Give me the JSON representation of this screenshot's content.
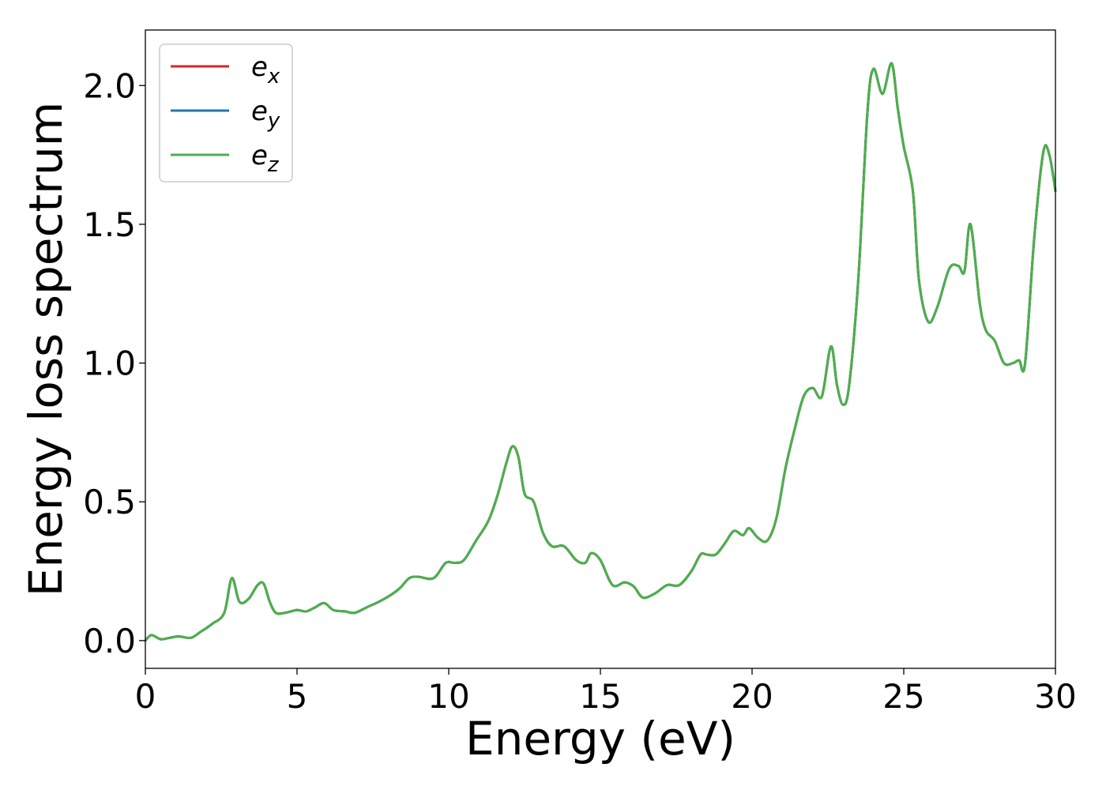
{
  "chart_data": {
    "type": "line",
    "title": "",
    "xlabel": "Energy (eV)",
    "ylabel": "Energy loss spectrum",
    "xlim": [
      0,
      30
    ],
    "ylim": [
      -0.1,
      2.2
    ],
    "xticks": [
      0,
      5,
      10,
      15,
      20,
      25,
      30
    ],
    "xtick_labels": [
      "0",
      "5",
      "10",
      "15",
      "20",
      "25",
      "30"
    ],
    "yticks": [
      0.0,
      0.5,
      1.0,
      1.5,
      2.0
    ],
    "ytick_labels": [
      "0.0",
      "0.5",
      "1.0",
      "1.5",
      "2.0"
    ],
    "grid": false,
    "legend_position": "top-left",
    "x": [
      0,
      0.2,
      0.5,
      0.8,
      1.1,
      1.5,
      1.8,
      2.2,
      2.6,
      2.85,
      3.1,
      3.4,
      3.7,
      3.9,
      4.1,
      4.3,
      4.6,
      5.0,
      5.3,
      5.6,
      5.9,
      6.2,
      6.6,
      6.9,
      7.3,
      7.7,
      8.1,
      8.4,
      8.7,
      9.0,
      9.5,
      9.9,
      10.2,
      10.5,
      10.9,
      11.3,
      11.6,
      11.9,
      12.1,
      12.3,
      12.5,
      12.8,
      13.1,
      13.4,
      13.8,
      14.2,
      14.5,
      14.7,
      15.0,
      15.4,
      15.8,
      16.1,
      16.4,
      16.8,
      17.2,
      17.6,
      18.0,
      18.3,
      18.5,
      18.8,
      19.1,
      19.4,
      19.7,
      19.9,
      20.2,
      20.5,
      20.8,
      21.1,
      21.4,
      21.7,
      22.0,
      22.3,
      22.6,
      22.8,
      23.0,
      23.2,
      23.5,
      23.8,
      24.0,
      24.3,
      24.6,
      24.8,
      25.0,
      25.3,
      25.5,
      25.8,
      26.1,
      26.5,
      26.8,
      27.0,
      27.2,
      27.5,
      27.7,
      28.0,
      28.3,
      28.6,
      28.8,
      29.0,
      29.3,
      29.6,
      29.8,
      30.0
    ],
    "series": [
      {
        "name": "e_x",
        "color": "#d62728",
        "values": [
          0.0,
          0.02,
          0.005,
          0.01,
          0.015,
          0.01,
          0.03,
          0.06,
          0.1,
          0.225,
          0.14,
          0.15,
          0.2,
          0.205,
          0.14,
          0.1,
          0.1,
          0.11,
          0.105,
          0.12,
          0.135,
          0.11,
          0.105,
          0.1,
          0.12,
          0.14,
          0.165,
          0.19,
          0.225,
          0.23,
          0.225,
          0.28,
          0.28,
          0.29,
          0.36,
          0.43,
          0.52,
          0.64,
          0.7,
          0.66,
          0.53,
          0.5,
          0.39,
          0.34,
          0.34,
          0.29,
          0.28,
          0.315,
          0.29,
          0.2,
          0.21,
          0.195,
          0.155,
          0.17,
          0.2,
          0.2,
          0.25,
          0.31,
          0.31,
          0.31,
          0.35,
          0.395,
          0.38,
          0.405,
          0.37,
          0.36,
          0.44,
          0.62,
          0.76,
          0.88,
          0.91,
          0.88,
          1.06,
          0.92,
          0.85,
          0.92,
          1.3,
          1.9,
          2.06,
          1.97,
          2.08,
          1.92,
          1.78,
          1.62,
          1.3,
          1.15,
          1.2,
          1.34,
          1.35,
          1.33,
          1.5,
          1.22,
          1.12,
          1.08,
          1.0,
          1.0,
          1.01,
          1.0,
          1.45,
          1.76,
          1.75,
          1.62
        ]
      },
      {
        "name": "e_y",
        "color": "#1f77b4",
        "values": [
          0.0,
          0.02,
          0.005,
          0.01,
          0.015,
          0.01,
          0.03,
          0.06,
          0.1,
          0.225,
          0.14,
          0.15,
          0.2,
          0.205,
          0.14,
          0.1,
          0.1,
          0.11,
          0.105,
          0.12,
          0.135,
          0.11,
          0.105,
          0.1,
          0.12,
          0.14,
          0.165,
          0.19,
          0.225,
          0.23,
          0.225,
          0.28,
          0.28,
          0.29,
          0.36,
          0.43,
          0.52,
          0.64,
          0.7,
          0.66,
          0.53,
          0.5,
          0.39,
          0.34,
          0.34,
          0.29,
          0.28,
          0.315,
          0.29,
          0.2,
          0.21,
          0.195,
          0.155,
          0.17,
          0.2,
          0.2,
          0.25,
          0.31,
          0.31,
          0.31,
          0.35,
          0.395,
          0.38,
          0.405,
          0.37,
          0.36,
          0.44,
          0.62,
          0.76,
          0.88,
          0.91,
          0.88,
          1.06,
          0.92,
          0.85,
          0.92,
          1.3,
          1.9,
          2.06,
          1.97,
          2.08,
          1.92,
          1.78,
          1.62,
          1.3,
          1.15,
          1.2,
          1.34,
          1.35,
          1.33,
          1.5,
          1.22,
          1.12,
          1.08,
          1.0,
          1.0,
          1.01,
          1.0,
          1.45,
          1.76,
          1.75,
          1.62
        ]
      },
      {
        "name": "e_z",
        "color": "#4daf4a",
        "values": [
          0.0,
          0.02,
          0.005,
          0.01,
          0.015,
          0.01,
          0.03,
          0.06,
          0.1,
          0.225,
          0.14,
          0.15,
          0.2,
          0.205,
          0.14,
          0.1,
          0.1,
          0.11,
          0.105,
          0.12,
          0.135,
          0.11,
          0.105,
          0.1,
          0.12,
          0.14,
          0.165,
          0.19,
          0.225,
          0.23,
          0.225,
          0.28,
          0.28,
          0.29,
          0.36,
          0.43,
          0.52,
          0.64,
          0.7,
          0.66,
          0.53,
          0.5,
          0.39,
          0.34,
          0.34,
          0.29,
          0.28,
          0.315,
          0.29,
          0.2,
          0.21,
          0.195,
          0.155,
          0.17,
          0.2,
          0.2,
          0.25,
          0.31,
          0.31,
          0.31,
          0.35,
          0.395,
          0.38,
          0.405,
          0.37,
          0.36,
          0.44,
          0.62,
          0.76,
          0.88,
          0.91,
          0.88,
          1.06,
          0.92,
          0.85,
          0.92,
          1.3,
          1.9,
          2.06,
          1.97,
          2.08,
          1.92,
          1.78,
          1.62,
          1.3,
          1.15,
          1.2,
          1.34,
          1.35,
          1.33,
          1.5,
          1.22,
          1.12,
          1.08,
          1.0,
          1.0,
          1.01,
          1.0,
          1.45,
          1.76,
          1.75,
          1.62
        ]
      }
    ],
    "legend": [
      {
        "base": "e",
        "sub": "x",
        "color": "#d62728"
      },
      {
        "base": "e",
        "sub": "y",
        "color": "#1f77b4"
      },
      {
        "base": "e",
        "sub": "z",
        "color": "#4daf4a"
      }
    ]
  }
}
